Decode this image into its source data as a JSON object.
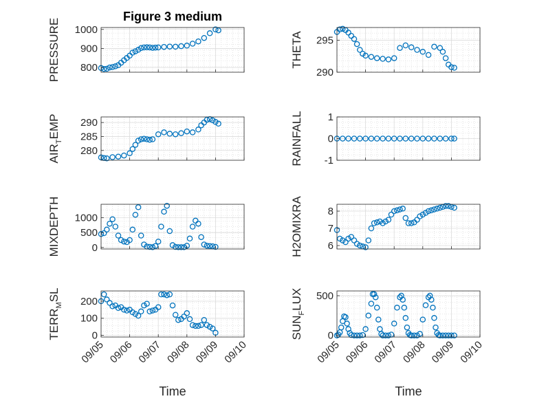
{
  "title": "Figure 3 medium",
  "marker_color": "#0072bd",
  "x_tick_labels": [
    "09/05",
    "09/06",
    "09/07",
    "09/08",
    "09/09",
    "09/10"
  ],
  "x_label": "Time",
  "chart_data": [
    {
      "type": "scatter",
      "panel": "PRESSURE",
      "ylabel": {
        "main": "PRESSURE",
        "sub": ""
      },
      "ylim": [
        775,
        1010
      ],
      "yticks": [
        800,
        900,
        1000
      ],
      "x": [
        0.0,
        0.1,
        0.2,
        0.3,
        0.4,
        0.5,
        0.6,
        0.7,
        0.8,
        0.9,
        1.0,
        1.1,
        1.2,
        1.3,
        1.4,
        1.5,
        1.6,
        1.7,
        1.8,
        1.9,
        2.0,
        2.2,
        2.4,
        2.6,
        2.8,
        3.0,
        3.2,
        3.4,
        3.6,
        3.8,
        4.0,
        4.1
      ],
      "y": [
        797,
        792,
        793,
        800,
        802,
        806,
        812,
        825,
        838,
        850,
        862,
        878,
        885,
        893,
        902,
        905,
        906,
        905,
        903,
        904,
        905,
        908,
        910,
        909,
        912,
        915,
        925,
        937,
        955,
        980,
        1000,
        995
      ],
      "marker": "circle",
      "grid": true
    },
    {
      "type": "scatter",
      "panel": "THETA",
      "ylabel": {
        "main": "THETA",
        "sub": ""
      },
      "ylim": [
        290,
        297
      ],
      "yticks": [
        290,
        295
      ],
      "x": [
        0.0,
        0.1,
        0.2,
        0.3,
        0.4,
        0.5,
        0.6,
        0.7,
        0.8,
        0.9,
        1.0,
        1.2,
        1.4,
        1.6,
        1.8,
        2.0,
        2.2,
        2.4,
        2.6,
        2.8,
        3.0,
        3.2,
        3.4,
        3.6,
        3.7,
        3.8,
        3.9,
        4.0,
        4.1
      ],
      "y": [
        296.3,
        296.7,
        296.8,
        296.6,
        296.2,
        295.7,
        295.2,
        294.4,
        293.5,
        292.9,
        292.6,
        292.4,
        292.2,
        292.1,
        292.0,
        292.2,
        293.8,
        294.2,
        293.9,
        293.5,
        293.2,
        292.7,
        294.0,
        293.8,
        293.2,
        292.2,
        291.2,
        290.8,
        290.7
      ],
      "marker": "circle",
      "grid": true
    },
    {
      "type": "scatter",
      "panel": "AIR_TEMP",
      "ylabel": {
        "main": "AIR",
        "sub": "T",
        "rest": "EMP"
      },
      "ylim": [
        276.5,
        292
      ],
      "yticks": [
        280,
        285,
        290
      ],
      "x": [
        0.0,
        0.1,
        0.2,
        0.4,
        0.6,
        0.8,
        1.0,
        1.1,
        1.2,
        1.3,
        1.4,
        1.5,
        1.6,
        1.7,
        1.8,
        2.0,
        2.2,
        2.4,
        2.6,
        2.8,
        3.0,
        3.2,
        3.4,
        3.5,
        3.6,
        3.7,
        3.8,
        3.9,
        4.0,
        4.1
      ],
      "y": [
        277.5,
        277.3,
        277.2,
        277.6,
        277.8,
        278.2,
        279.0,
        280.5,
        282.0,
        283.5,
        284.0,
        284.2,
        284.0,
        283.8,
        284.0,
        285.8,
        286.5,
        286.0,
        285.8,
        286.2,
        286.8,
        286.5,
        287.5,
        289.0,
        290.0,
        291.0,
        291.2,
        290.8,
        290.2,
        289.6
      ],
      "marker": "circle",
      "grid": true
    },
    {
      "type": "scatter",
      "panel": "RAINFALL",
      "ylabel": {
        "main": "RAINFALL",
        "sub": ""
      },
      "ylim": [
        -1,
        1
      ],
      "yticks": [
        -1,
        0,
        1
      ],
      "x": [
        0.0,
        0.2,
        0.4,
        0.6,
        0.8,
        1.0,
        1.2,
        1.4,
        1.6,
        1.8,
        2.0,
        2.2,
        2.4,
        2.6,
        2.8,
        3.0,
        3.2,
        3.4,
        3.6,
        3.8,
        4.0,
        4.1
      ],
      "y": [
        0,
        0,
        0,
        0,
        0,
        0,
        0,
        0,
        0,
        0,
        0,
        0,
        0,
        0,
        0,
        0,
        0,
        0,
        0,
        0,
        0,
        0
      ],
      "marker": "circle",
      "grid": true
    },
    {
      "type": "scatter",
      "panel": "MIXDEPTH",
      "ylabel": {
        "main": "MIXDEPTH",
        "sub": ""
      },
      "ylim": [
        -50,
        1450
      ],
      "yticks": [
        0,
        500,
        1000
      ],
      "x": [
        0.0,
        0.1,
        0.2,
        0.3,
        0.4,
        0.5,
        0.6,
        0.7,
        0.8,
        0.9,
        1.0,
        1.1,
        1.2,
        1.3,
        1.4,
        1.5,
        1.6,
        1.7,
        1.8,
        1.9,
        2.0,
        2.1,
        2.2,
        2.3,
        2.4,
        2.5,
        2.6,
        2.7,
        2.8,
        2.9,
        3.0,
        3.1,
        3.2,
        3.3,
        3.4,
        3.5,
        3.6,
        3.7,
        3.8,
        3.9,
        4.0
      ],
      "y": [
        450,
        480,
        600,
        800,
        950,
        700,
        400,
        250,
        200,
        180,
        250,
        600,
        1100,
        1350,
        400,
        100,
        30,
        20,
        10,
        50,
        200,
        700,
        1200,
        1400,
        550,
        80,
        20,
        10,
        10,
        10,
        60,
        300,
        700,
        900,
        800,
        350,
        100,
        60,
        50,
        40,
        20
      ],
      "marker": "circle",
      "grid": true
    },
    {
      "type": "scatter",
      "panel": "H2OMIXRA",
      "ylabel": {
        "main": "H2OMIXRA",
        "sub": ""
      },
      "ylim": [
        5.8,
        8.4
      ],
      "yticks": [
        6,
        7,
        8
      ],
      "x": [
        0.0,
        0.1,
        0.2,
        0.3,
        0.4,
        0.5,
        0.6,
        0.7,
        0.8,
        0.9,
        1.0,
        1.1,
        1.2,
        1.3,
        1.4,
        1.5,
        1.6,
        1.7,
        1.8,
        1.9,
        2.0,
        2.1,
        2.2,
        2.3,
        2.4,
        2.5,
        2.6,
        2.7,
        2.8,
        2.9,
        3.0,
        3.1,
        3.2,
        3.3,
        3.4,
        3.5,
        3.6,
        3.7,
        3.8,
        3.9,
        4.0,
        4.1
      ],
      "y": [
        6.9,
        6.4,
        6.3,
        6.2,
        6.4,
        6.5,
        6.3,
        6.1,
        6.0,
        5.95,
        5.9,
        6.3,
        7.0,
        7.3,
        7.35,
        7.4,
        7.3,
        7.4,
        7.5,
        7.8,
        8.0,
        8.05,
        8.1,
        8.15,
        7.6,
        7.3,
        7.3,
        7.35,
        7.5,
        7.7,
        7.8,
        7.9,
        8.0,
        8.05,
        8.1,
        8.15,
        8.2,
        8.25,
        8.3,
        8.3,
        8.25,
        8.2
      ],
      "marker": "circle",
      "grid": true
    },
    {
      "type": "scatter",
      "panel": "TERR_MSL",
      "ylabel": {
        "main": "TERR",
        "sub": "M",
        "rest": "SL"
      },
      "ylim": [
        -10,
        260
      ],
      "yticks": [
        0,
        100,
        200
      ],
      "x": [
        0.0,
        0.1,
        0.2,
        0.3,
        0.4,
        0.5,
        0.6,
        0.7,
        0.8,
        0.9,
        1.0,
        1.1,
        1.2,
        1.3,
        1.4,
        1.5,
        1.6,
        1.7,
        1.8,
        1.9,
        2.0,
        2.1,
        2.2,
        2.3,
        2.4,
        2.5,
        2.6,
        2.7,
        2.8,
        2.9,
        3.0,
        3.1,
        3.2,
        3.3,
        3.4,
        3.5,
        3.6,
        3.7,
        3.8,
        3.9,
        4.0
      ],
      "y": [
        200,
        240,
        210,
        190,
        170,
        175,
        160,
        165,
        150,
        145,
        150,
        135,
        125,
        115,
        140,
        175,
        185,
        140,
        145,
        150,
        165,
        240,
        240,
        235,
        240,
        175,
        120,
        90,
        95,
        110,
        130,
        95,
        60,
        55,
        55,
        60,
        90,
        60,
        50,
        40,
        15
      ],
      "marker": "circle",
      "grid": true
    },
    {
      "type": "scatter",
      "panel": "SUN_FLUX",
      "ylabel": {
        "main": "SUN",
        "sub": "F",
        "rest": "LUX"
      },
      "ylim": [
        -20,
        560
      ],
      "yticks": [
        0,
        500
      ],
      "x": [
        0.0,
        0.05,
        0.1,
        0.15,
        0.2,
        0.25,
        0.3,
        0.35,
        0.4,
        0.45,
        0.5,
        0.6,
        0.7,
        0.8,
        0.9,
        1.0,
        1.1,
        1.2,
        1.25,
        1.3,
        1.35,
        1.4,
        1.45,
        1.5,
        1.55,
        1.6,
        1.7,
        1.8,
        1.9,
        2.0,
        2.1,
        2.2,
        2.25,
        2.3,
        2.35,
        2.4,
        2.45,
        2.5,
        2.55,
        2.6,
        2.7,
        2.8,
        2.9,
        3.0,
        3.1,
        3.2,
        3.25,
        3.3,
        3.35,
        3.4,
        3.45,
        3.5,
        3.55,
        3.6,
        3.7,
        3.8,
        3.9,
        4.0,
        4.1
      ],
      "y": [
        0,
        10,
        40,
        100,
        180,
        240,
        230,
        150,
        80,
        30,
        5,
        0,
        0,
        0,
        5,
        80,
        250,
        400,
        520,
        520,
        480,
        350,
        200,
        80,
        20,
        0,
        0,
        0,
        10,
        150,
        350,
        480,
        500,
        450,
        350,
        220,
        100,
        30,
        5,
        0,
        0,
        0,
        20,
        200,
        380,
        480,
        500,
        450,
        350,
        220,
        100,
        30,
        5,
        0,
        0,
        0,
        0,
        0,
        0
      ],
      "marker": "circle",
      "grid": true
    }
  ]
}
